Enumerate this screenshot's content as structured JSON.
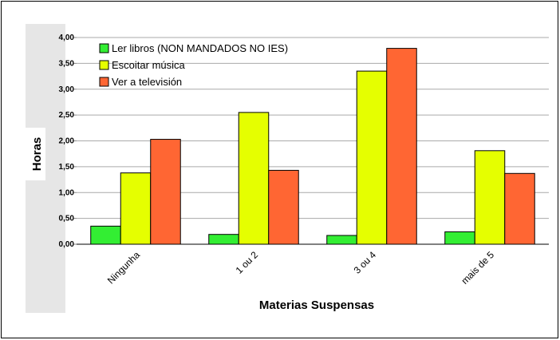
{
  "chart_data": {
    "type": "bar",
    "title": "",
    "xlabel": "Materias Suspensas",
    "ylabel": "Horas",
    "categories": [
      "Ningunha",
      "1 ou 2",
      "3 ou 4",
      "mais de 5"
    ],
    "series": [
      {
        "name": "Ler libros (NON MANDADOS NO IES)",
        "color": "#33ee33",
        "values": [
          0.35,
          0.19,
          0.17,
          0.24
        ]
      },
      {
        "name": "Escoitar música",
        "color": "#e5ff00",
        "values": [
          1.38,
          2.55,
          3.35,
          1.81
        ]
      },
      {
        "name": "Ver a televisión",
        "color": "#ff6633",
        "values": [
          2.03,
          1.43,
          3.79,
          1.37
        ]
      }
    ],
    "ylim": [
      0,
      4
    ],
    "yticks": [
      "0,00",
      "0,50",
      "1,00",
      "1,50",
      "2,00",
      "2,50",
      "3,00",
      "3,50",
      "4,00"
    ],
    "grid": true,
    "legend_position": "top-left"
  }
}
